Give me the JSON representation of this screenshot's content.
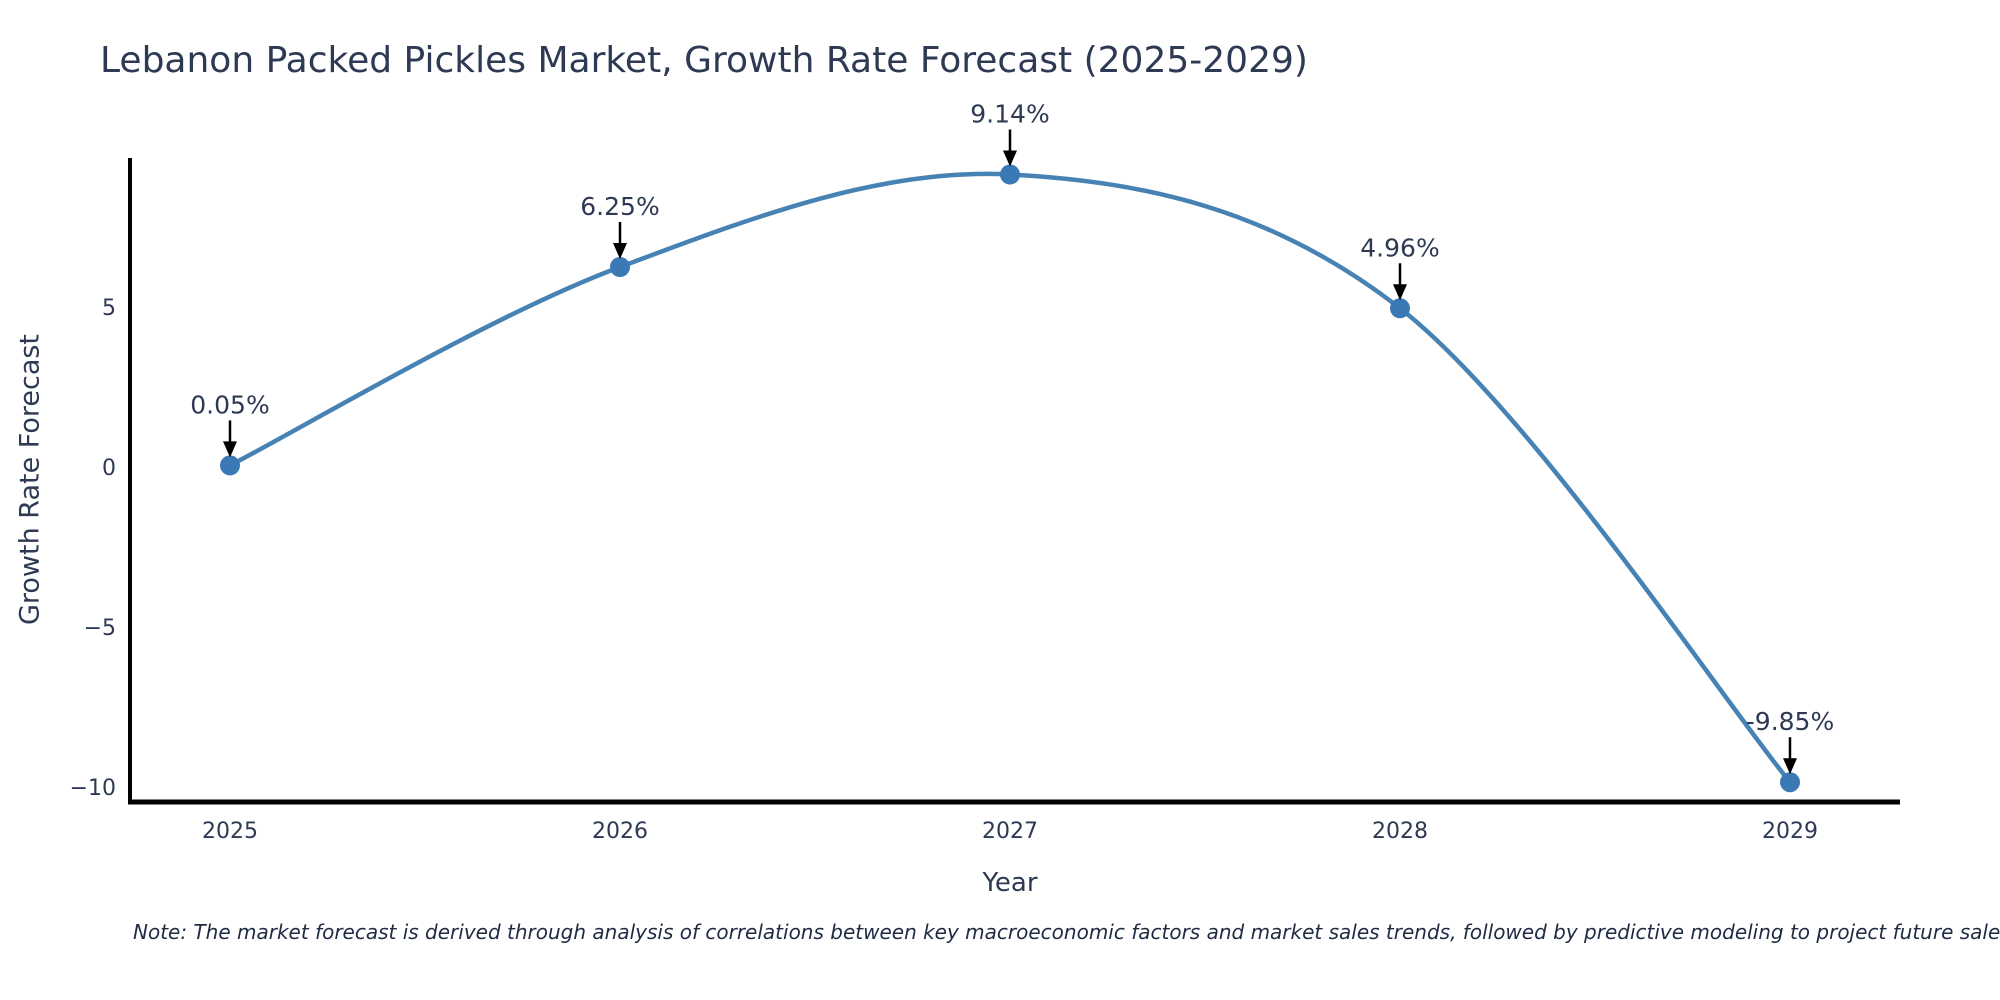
{
  "title": "Lebanon Packed Pickles Market, Growth Rate Forecast (2025-2029)",
  "note": "Note: The market forecast is derived through analysis of correlations between key macroeconomic factors and market sales trends, followed by predictive modeling to project future sales",
  "chart_data": {
    "type": "line",
    "title": "Lebanon Packed Pickles Market, Growth Rate Forecast (2025-2029)",
    "xlabel": "Year",
    "ylabel": "Growth Rate Forecast",
    "x": [
      2025,
      2026,
      2027,
      2028,
      2029
    ],
    "values": [
      0.05,
      6.25,
      9.14,
      4.96,
      -9.85
    ],
    "point_labels": [
      "0.05%",
      "6.25%",
      "9.14%",
      "4.96%",
      "-9.85%"
    ],
    "xticks": [
      2025,
      2026,
      2027,
      2028,
      2029
    ],
    "yticks": [
      {
        "value": 5,
        "label": "5"
      },
      {
        "value": 0,
        "label": "0"
      },
      {
        "value": -5,
        "label": "−5"
      },
      {
        "value": -10,
        "label": "−10"
      }
    ],
    "xlim": [
      2024.74,
      2029.28
    ],
    "ylim": [
      -10.47,
      9.6
    ],
    "grid": false,
    "legend": "none",
    "smooth": true,
    "line_color": "#4682b4",
    "marker_color": "#3a79b5",
    "axis_color": "#000000",
    "arrow_color": "#000000",
    "text_color": "#2e3a54"
  }
}
